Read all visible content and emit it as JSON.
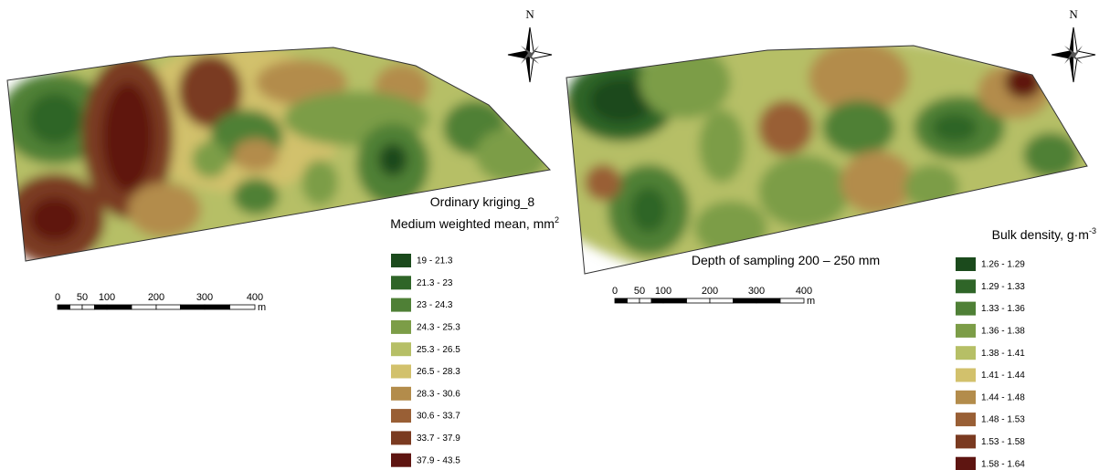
{
  "panels": [
    {
      "north": "N",
      "titles": [
        {
          "text": "Ordinary kriging_8"
        },
        {
          "text": "Medium weighted mean, mm",
          "sup": "2"
        }
      ],
      "legend": [
        {
          "label": "19 - 21.3",
          "color": "#1b4a1c"
        },
        {
          "label": "21.3 - 23",
          "color": "#2f6528"
        },
        {
          "label": "23 - 24.3",
          "color": "#4f8036"
        },
        {
          "label": "24.3 - 25.3",
          "color": "#7c9d47"
        },
        {
          "label": "25.3 - 26.5",
          "color": "#b6bf66"
        },
        {
          "label": "26.5 - 28.3",
          "color": "#d2c16c"
        },
        {
          "label": "28.3 - 30.6",
          "color": "#b38c4b"
        },
        {
          "label": "30.6 - 33.7",
          "color": "#995f35"
        },
        {
          "label": "33.7 - 37.9",
          "color": "#7a3a20"
        },
        {
          "label": "37.9 - 43.5",
          "color": "#5e1511"
        }
      ],
      "scale": {
        "labels": [
          "0",
          "50",
          "100",
          "200",
          "300",
          "400"
        ],
        "unit": "m"
      }
    },
    {
      "north": "N",
      "titles": [
        {
          "text": "Bulk density, g·m",
          "sup": "-3"
        },
        {
          "text": "Depth of sampling 200 – 250 mm"
        }
      ],
      "legend": [
        {
          "label": "1.26 - 1.29",
          "color": "#1b4a1c"
        },
        {
          "label": "1.29 - 1.33",
          "color": "#2f6528"
        },
        {
          "label": "1.33 - 1.36",
          "color": "#4f8036"
        },
        {
          "label": "1.36 - 1.38",
          "color": "#7c9d47"
        },
        {
          "label": "1.38 - 1.41",
          "color": "#b6bf66"
        },
        {
          "label": "1.41 - 1.44",
          "color": "#d2c16c"
        },
        {
          "label": "1.44 - 1.48",
          "color": "#b38c4b"
        },
        {
          "label": "1.48 - 1.53",
          "color": "#995f35"
        },
        {
          "label": "1.53 - 1.58",
          "color": "#7a3a20"
        },
        {
          "label": "1.58 - 1.64",
          "color": "#5e1511"
        }
      ],
      "scale": {
        "labels": [
          "0",
          "50",
          "100",
          "200",
          "300",
          "400"
        ],
        "unit": "m"
      }
    }
  ]
}
